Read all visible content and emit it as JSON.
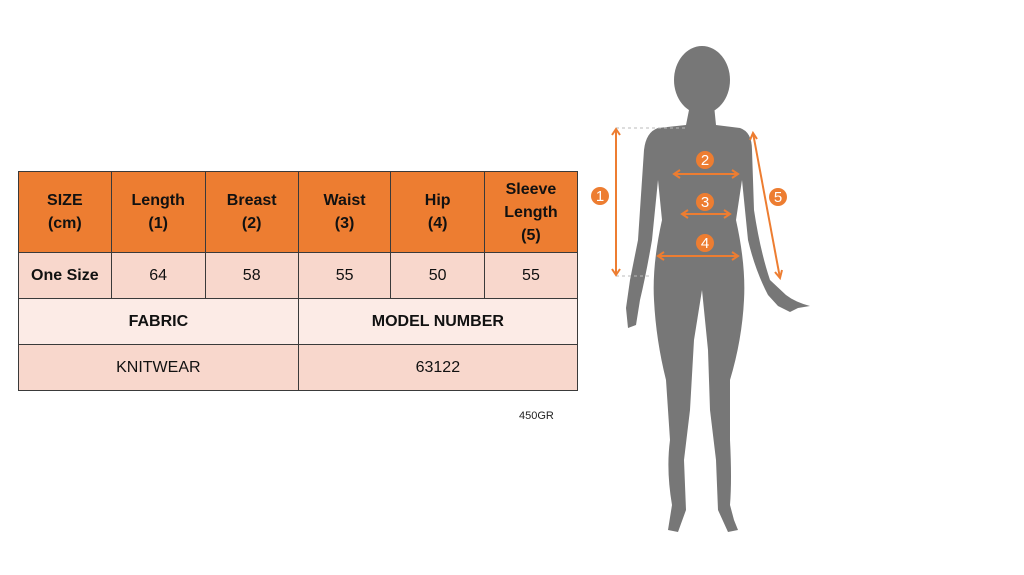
{
  "table": {
    "headers": [
      "SIZE\n(cm)",
      "Length\n(1)",
      "Breast\n(2)",
      "Waist\n(3)",
      "Hip\n(4)",
      "Sleeve\nLength\n(5)"
    ],
    "rows": [
      {
        "size": "One Size",
        "values": [
          "64",
          "58",
          "55",
          "50",
          "55"
        ]
      }
    ],
    "fabric_label": "FABRIC",
    "model_label": "MODEL NUMBER",
    "fabric_value": "KNITWEAR",
    "model_value": "63122"
  },
  "weight": "450GR",
  "figure": {
    "markers": [
      "1",
      "2",
      "3",
      "4",
      "5"
    ],
    "accent_color": "#ED7D31",
    "silhouette_color": "#777777"
  }
}
